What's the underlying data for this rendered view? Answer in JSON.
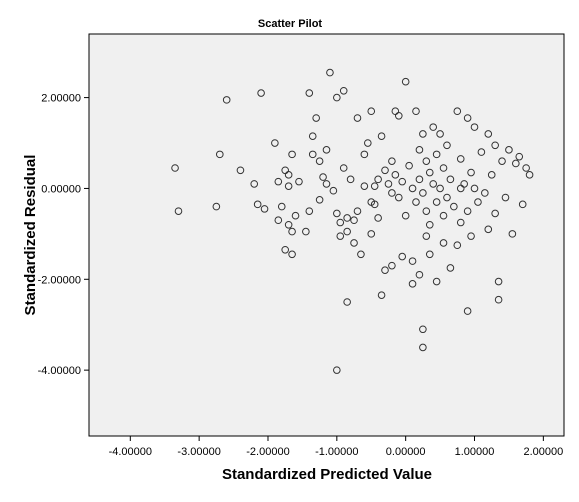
{
  "chart_data": {
    "type": "scatter",
    "title": "Scatter Pilot",
    "xlabel": "Standardized Predicted Value",
    "ylabel": "Standardized Residual",
    "xlim": [
      -4.6,
      2.3
    ],
    "ylim": [
      -5.45,
      3.4
    ],
    "x_ticks": [
      {
        "value": -4,
        "label": "-4.00000"
      },
      {
        "value": -3,
        "label": "-3.00000"
      },
      {
        "value": -2,
        "label": "-2.00000"
      },
      {
        "value": -1,
        "label": "-1.00000"
      },
      {
        "value": 0,
        "label": "0.00000"
      },
      {
        "value": 1,
        "label": "1.00000"
      },
      {
        "value": 2,
        "label": "2.00000"
      }
    ],
    "y_ticks": [
      {
        "value": 2,
        "label": "2.00000"
      },
      {
        "value": 0,
        "label": "0.00000"
      },
      {
        "value": -2,
        "label": "-2.00000"
      },
      {
        "value": -4,
        "label": "-4.00000"
      }
    ],
    "grid": false,
    "marker": "hollow-circle",
    "colors": {
      "marker": "#333333",
      "plot_background": "#f0f0f0",
      "page_background": "#ffffff"
    },
    "points": [
      [
        -3.35,
        0.45
      ],
      [
        -3.3,
        -0.5
      ],
      [
        -2.75,
        -0.4
      ],
      [
        -2.7,
        0.75
      ],
      [
        -2.6,
        1.95
      ],
      [
        -2.4,
        0.4
      ],
      [
        -2.1,
        2.1
      ],
      [
        -2.2,
        0.1
      ],
      [
        -2.15,
        -0.35
      ],
      [
        -2.05,
        -0.45
      ],
      [
        -1.9,
        1.0
      ],
      [
        -1.85,
        0.15
      ],
      [
        -1.85,
        -0.7
      ],
      [
        -1.8,
        -0.4
      ],
      [
        -1.75,
        0.4
      ],
      [
        -1.7,
        0.3
      ],
      [
        -1.7,
        0.05
      ],
      [
        -1.7,
        -0.8
      ],
      [
        -1.65,
        0.75
      ],
      [
        -1.65,
        -0.95
      ],
      [
        -1.75,
        -1.35
      ],
      [
        -1.65,
        -1.45
      ],
      [
        -1.6,
        -0.6
      ],
      [
        -1.55,
        0.15
      ],
      [
        -1.45,
        -0.95
      ],
      [
        -1.4,
        -0.5
      ],
      [
        -1.35,
        1.15
      ],
      [
        -1.35,
        0.75
      ],
      [
        -1.4,
        2.1
      ],
      [
        -1.3,
        1.55
      ],
      [
        -1.25,
        0.6
      ],
      [
        -1.2,
        0.25
      ],
      [
        -1.15,
        0.85
      ],
      [
        -1.15,
        0.1
      ],
      [
        -1.1,
        2.55
      ],
      [
        -1.05,
        -0.05
      ],
      [
        -1.0,
        2.0
      ],
      [
        -1.0,
        -0.55
      ],
      [
        -0.95,
        -0.75
      ],
      [
        -0.95,
        -1.05
      ],
      [
        -0.9,
        2.15
      ],
      [
        -0.9,
        0.45
      ],
      [
        -0.85,
        -0.65
      ],
      [
        -0.85,
        -0.95
      ],
      [
        -0.8,
        0.2
      ],
      [
        -0.75,
        -1.2
      ],
      [
        -0.75,
        -0.7
      ],
      [
        -0.7,
        1.55
      ],
      [
        -0.7,
        -0.5
      ],
      [
        -0.65,
        -1.45
      ],
      [
        -0.6,
        0.75
      ],
      [
        -0.55,
        1.0
      ],
      [
        -0.5,
        1.7
      ],
      [
        -0.5,
        -0.3
      ],
      [
        -0.45,
        0.05
      ],
      [
        -0.45,
        -0.35
      ],
      [
        -0.4,
        0.2
      ],
      [
        -0.35,
        1.15
      ],
      [
        -0.3,
        0.4
      ],
      [
        -0.3,
        -1.8
      ],
      [
        -0.25,
        0.1
      ],
      [
        -0.2,
        0.6
      ],
      [
        -0.2,
        -0.1
      ],
      [
        -0.15,
        1.7
      ],
      [
        -0.15,
        0.3
      ],
      [
        -0.1,
        1.6
      ],
      [
        -0.1,
        -0.2
      ],
      [
        -0.05,
        0.15
      ],
      [
        0.0,
        2.35
      ],
      [
        0.0,
        -0.6
      ],
      [
        0.05,
        0.5
      ],
      [
        0.1,
        0.0
      ],
      [
        0.1,
        -1.6
      ],
      [
        0.15,
        1.7
      ],
      [
        0.15,
        -0.3
      ],
      [
        0.2,
        0.85
      ],
      [
        0.2,
        0.2
      ],
      [
        0.25,
        1.2
      ],
      [
        0.25,
        -0.1
      ],
      [
        0.3,
        0.6
      ],
      [
        0.3,
        -0.5
      ],
      [
        0.3,
        -1.05
      ],
      [
        0.35,
        0.35
      ],
      [
        0.35,
        -0.8
      ],
      [
        0.4,
        0.1
      ],
      [
        0.4,
        1.35
      ],
      [
        0.45,
        -0.3
      ],
      [
        0.45,
        0.75
      ],
      [
        0.5,
        0.0
      ],
      [
        0.5,
        1.2
      ],
      [
        0.55,
        0.45
      ],
      [
        0.55,
        -0.6
      ],
      [
        0.6,
        0.95
      ],
      [
        0.6,
        -0.2
      ],
      [
        0.65,
        0.2
      ],
      [
        0.7,
        -0.4
      ],
      [
        0.75,
        1.7
      ],
      [
        0.75,
        -1.25
      ],
      [
        0.8,
        0.65
      ],
      [
        0.8,
        -0.75
      ],
      [
        0.85,
        0.1
      ],
      [
        0.9,
        1.55
      ],
      [
        0.9,
        -0.5
      ],
      [
        0.95,
        0.35
      ],
      [
        0.95,
        -1.05
      ],
      [
        1.0,
        1.35
      ],
      [
        1.0,
        0.0
      ],
      [
        1.05,
        -0.3
      ],
      [
        1.1,
        0.8
      ],
      [
        1.15,
        -0.1
      ],
      [
        1.2,
        1.2
      ],
      [
        1.2,
        -0.9
      ],
      [
        1.25,
        0.3
      ],
      [
        1.3,
        0.95
      ],
      [
        1.3,
        -0.55
      ],
      [
        1.35,
        -2.05
      ],
      [
        1.35,
        -2.45
      ],
      [
        1.4,
        0.6
      ],
      [
        1.45,
        -0.2
      ],
      [
        1.5,
        0.85
      ],
      [
        1.55,
        -1.0
      ],
      [
        1.6,
        0.55
      ],
      [
        1.65,
        0.7
      ],
      [
        1.7,
        -0.35
      ],
      [
        1.75,
        0.45
      ],
      [
        1.8,
        0.3
      ],
      [
        -0.5,
        -1.0
      ],
      [
        -0.4,
        -0.65
      ],
      [
        -0.2,
        -1.7
      ],
      [
        0.1,
        -2.1
      ],
      [
        0.2,
        -1.9
      ],
      [
        0.25,
        -3.1
      ],
      [
        0.25,
        -3.5
      ],
      [
        0.35,
        -1.45
      ],
      [
        0.45,
        -2.05
      ],
      [
        0.55,
        -1.2
      ],
      [
        0.65,
        -1.75
      ],
      [
        0.9,
        -2.7
      ],
      [
        0.8,
        0.0
      ],
      [
        -0.6,
        0.05
      ],
      [
        -0.05,
        -1.5
      ],
      [
        -0.35,
        -2.35
      ],
      [
        -0.85,
        -2.5
      ],
      [
        -1.0,
        -4.0
      ],
      [
        -1.25,
        -0.25
      ]
    ]
  }
}
